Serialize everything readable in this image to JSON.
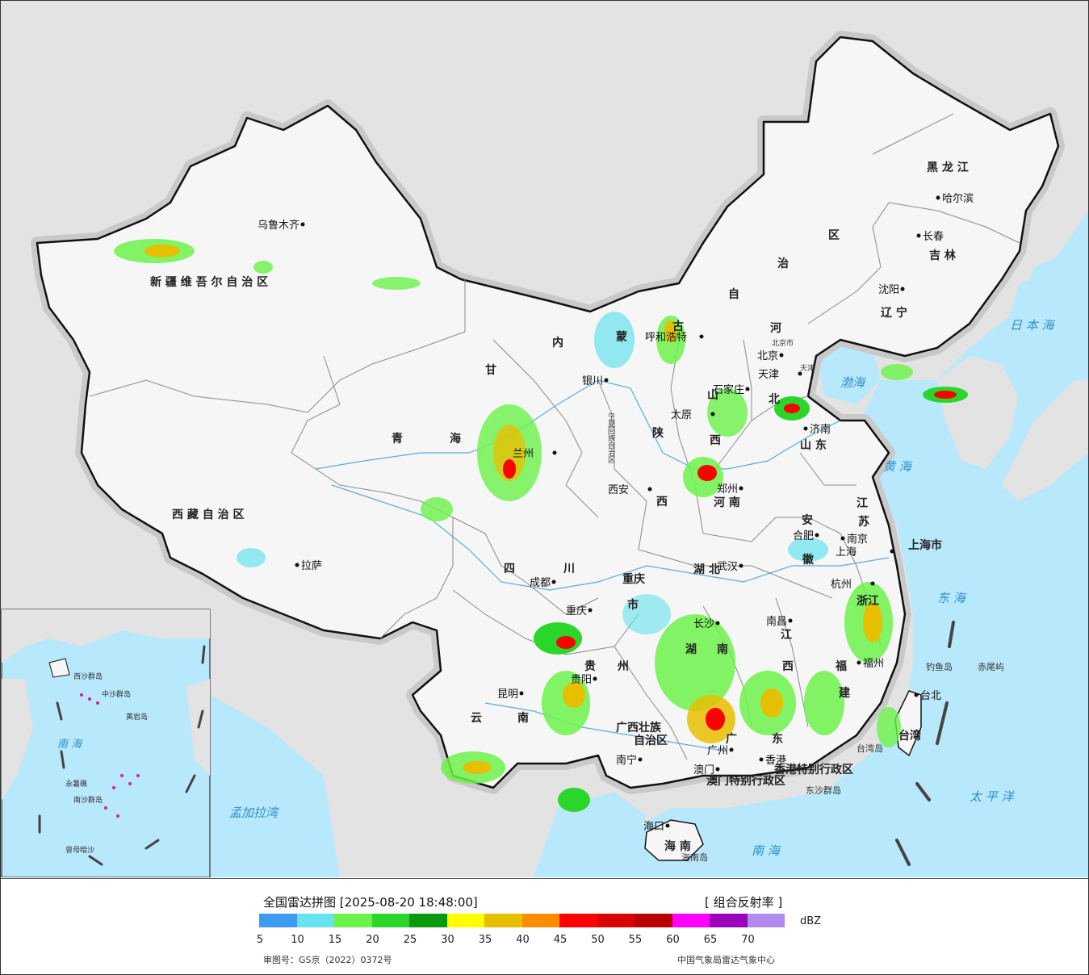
{
  "legend": {
    "title": "全国雷达拼图 [2025-08-20 18:48:00]",
    "product": "[ 组合反射率 ]",
    "unit": "dBZ",
    "ticks": [
      "5",
      "10",
      "15",
      "20",
      "25",
      "30",
      "35",
      "40",
      "45",
      "50",
      "55",
      "60",
      "65",
      "70"
    ],
    "colors": [
      "#3d9bf0",
      "#66e3ef",
      "#6cf24a",
      "#2bd62b",
      "#0a9a10",
      "#ffff00",
      "#e6c000",
      "#ff8c00",
      "#ff0000",
      "#d80000",
      "#b80000",
      "#ff00ff",
      "#9a00b8",
      "#b08aee"
    ],
    "map_approval": "审图号：GS京（2022）0372号",
    "source": "中国气象局雷达气象中心"
  },
  "colors": {
    "land": "#f6f6f6",
    "foreign_land": "#e3e3e3",
    "sea": "#b8e8fb",
    "border": "#111111",
    "halo": "#c8c8c8"
  },
  "labels": {
    "xinjiang": "新 疆 维 吾 尔 自 治 区",
    "xizang": "西 藏 自 治 区",
    "qinghai_a": "青",
    "qinghai_b": "海",
    "gansu": "甘",
    "sichuan_a": "四",
    "sichuan_b": "川",
    "yunnan_a": "云",
    "yunnan_b": "南",
    "guizhou_a": "贵",
    "guizhou_b": "州",
    "guangxi_a": "广西壮族",
    "guangxi_b": "自治区",
    "guangdong_a": "广",
    "guangdong_b": "东",
    "hunan_a": "湖",
    "hunan_b": "南",
    "hubei": "湖  北",
    "henan": "河  南",
    "shaanxi_a": "陕",
    "shaanxi_b": "西",
    "shanxi_a": "山",
    "shanxi_b": "西",
    "shandong": "山 东",
    "hebei_a": "河",
    "hebei_b": "北",
    "nmg_a": "内",
    "nmg_b": "蒙",
    "nmg_c": "古",
    "nmg_d": "自",
    "nmg_e": "治",
    "nmg_f": "区",
    "liaoning": "辽 宁",
    "jilin": "吉 林",
    "heilongjiang": "黑 龙 江",
    "jiangsu_a": "江",
    "jiangsu_b": "苏",
    "anhui_a": "安",
    "anhui_b": "徽",
    "zhejiang": "浙江",
    "jiangxi_a": "江",
    "jiangxi_b": "西",
    "fujian_a": "福",
    "fujian_b": "建",
    "hainan": "海 南",
    "taiwan": "台湾",
    "chongqing_a": "重庆",
    "chongqing_b": "市",
    "shanghai": "上海市",
    "hk_sar": "香港特别行政区",
    "macau_sar": "澳门特别行政区",
    "ningxia": "宁夏回族自治区",
    "beijing": "北京市",
    "tianjin": "天津"
  },
  "cities": [
    "乌鲁木齐",
    "拉萨",
    "兰州",
    "银川",
    "呼和浩特",
    "北京",
    "天津",
    "石家庄",
    "太原",
    "济南",
    "西安",
    "郑州",
    "合肥",
    "南京",
    "上海",
    "杭州",
    "武汉",
    "成都",
    "重庆",
    "贵阳",
    "长沙",
    "南昌",
    "福州",
    "台北",
    "昆明",
    "南宁",
    "广州",
    "香港",
    "澳门",
    "海口",
    "沈阳",
    "长春",
    "哈尔滨"
  ],
  "sea_labels": {
    "bohai": "渤海",
    "huanghai": "黄 海",
    "donghai": "东 海",
    "taipingyang": "太 平 洋",
    "nanhai": "南 海",
    "riben": "日 本 海",
    "mengjiala": "孟加拉湾",
    "south_sea_inset": "南 海"
  },
  "islands": {
    "diaoyu": "钓鱼岛",
    "chiwei": "赤尾屿",
    "dongsha": "东沙群岛",
    "hainan_island": "海南岛",
    "taiwan_island": "台湾岛",
    "xisha": "西沙群岛",
    "zhongsha": "中沙群岛",
    "huangyan": "黄岩岛",
    "nansha": "南沙群岛",
    "zengmu": "曾母暗沙",
    "yongshu": "永暑礁"
  }
}
